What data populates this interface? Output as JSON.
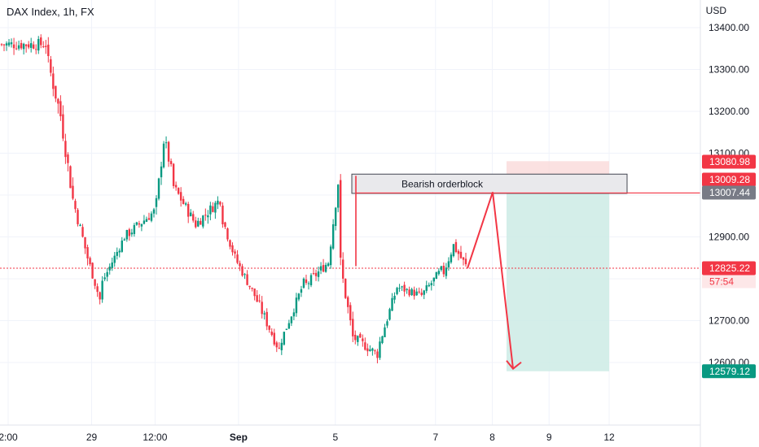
{
  "chart_data": {
    "type": "candlestick",
    "title": "DAX Index, 1h, FX",
    "currency": "USD",
    "ylim": [
      12550,
      13450
    ],
    "y_ticks": [
      "13400.00",
      "13300.00",
      "13200.00",
      "13100.00",
      "12900.00",
      "12700.00",
      "12600.00"
    ],
    "x_ticks": [
      {
        "label": "2:00",
        "pos": 0.0
      },
      {
        "label": "29",
        "pos": 0.125
      },
      {
        "label": "12:00",
        "pos": 0.22
      },
      {
        "label": "Sep",
        "pos": 0.345
      },
      {
        "label": "5",
        "pos": 0.49
      },
      {
        "label": "7",
        "pos": 0.64
      },
      {
        "label": "8",
        "pos": 0.725
      },
      {
        "label": "9",
        "pos": 0.81
      },
      {
        "label": "12",
        "pos": 0.9
      }
    ],
    "price_tags": [
      {
        "label": "13080.98",
        "value": 13080.98,
        "color": "#f23645"
      },
      {
        "label": "13009.28",
        "value": 13009.28,
        "color": "#f23645"
      },
      {
        "label": "13007.44",
        "value": 13007.44,
        "color": "#787b86"
      },
      {
        "label": "12825.22",
        "value": 12825.22,
        "color": "#f23645"
      },
      {
        "label": "12579.12",
        "value": 12579.12,
        "color": "#089981"
      }
    ],
    "countdown": "57:54",
    "orderblock": {
      "label": "Bearish orderblock",
      "top": 13050,
      "bottom": 13004
    },
    "trade": {
      "stop": 13080.98,
      "entry": 13009.28,
      "target": 12579.12
    },
    "current_price": 12825.22,
    "projection": [
      12825,
      13007,
      12585
    ],
    "colors": {
      "up": "#089981",
      "down": "#f23645",
      "stop_zone": "#f9d7d7",
      "target_zone": "#cdebe5",
      "grid": "#f0f3fa"
    },
    "segments": [
      {
        "n": 19,
        "start": 13360,
        "end": 13360,
        "vol": 28
      },
      {
        "n": 6,
        "start": 13340,
        "end": 13190,
        "vol": 40
      },
      {
        "n": 5,
        "start": 13190,
        "end": 12990,
        "vol": 40
      },
      {
        "n": 6,
        "start": 12990,
        "end": 12850,
        "vol": 30
      },
      {
        "n": 5,
        "start": 12850,
        "end": 12750,
        "vol": 22
      },
      {
        "n": 10,
        "start": 12780,
        "end": 12900,
        "vol": 20
      },
      {
        "n": 12,
        "start": 12900,
        "end": 12960,
        "vol": 25
      },
      {
        "n": 4,
        "start": 12930,
        "end": 13130,
        "vol": 32
      },
      {
        "n": 3,
        "start": 13140,
        "end": 13060,
        "vol": 30
      },
      {
        "n": 10,
        "start": 13030,
        "end": 12930,
        "vol": 26
      },
      {
        "n": 10,
        "start": 12930,
        "end": 12990,
        "vol": 26
      },
      {
        "n": 6,
        "start": 12960,
        "end": 12850,
        "vol": 26
      },
      {
        "n": 8,
        "start": 12850,
        "end": 12760,
        "vol": 22
      },
      {
        "n": 10,
        "start": 12760,
        "end": 12630,
        "vol": 26
      },
      {
        "n": 10,
        "start": 12640,
        "end": 12790,
        "vol": 22
      },
      {
        "n": 10,
        "start": 12780,
        "end": 12840,
        "vol": 24
      },
      {
        "n": 4,
        "start": 12840,
        "end": 13030,
        "vol": 30
      },
      {
        "n": 1,
        "start": 13030,
        "end": 12830,
        "vol": 60
      },
      {
        "n": 5,
        "start": 12830,
        "end": 12660,
        "vol": 32
      },
      {
        "n": 10,
        "start": 12660,
        "end": 12620,
        "vol": 24
      },
      {
        "n": 8,
        "start": 12630,
        "end": 12780,
        "vol": 24
      },
      {
        "n": 10,
        "start": 12780,
        "end": 12760,
        "vol": 20
      },
      {
        "n": 8,
        "start": 12760,
        "end": 12820,
        "vol": 22
      },
      {
        "n": 5,
        "start": 12800,
        "end": 12880,
        "vol": 24
      },
      {
        "n": 5,
        "start": 12880,
        "end": 12830,
        "vol": 26
      }
    ]
  }
}
